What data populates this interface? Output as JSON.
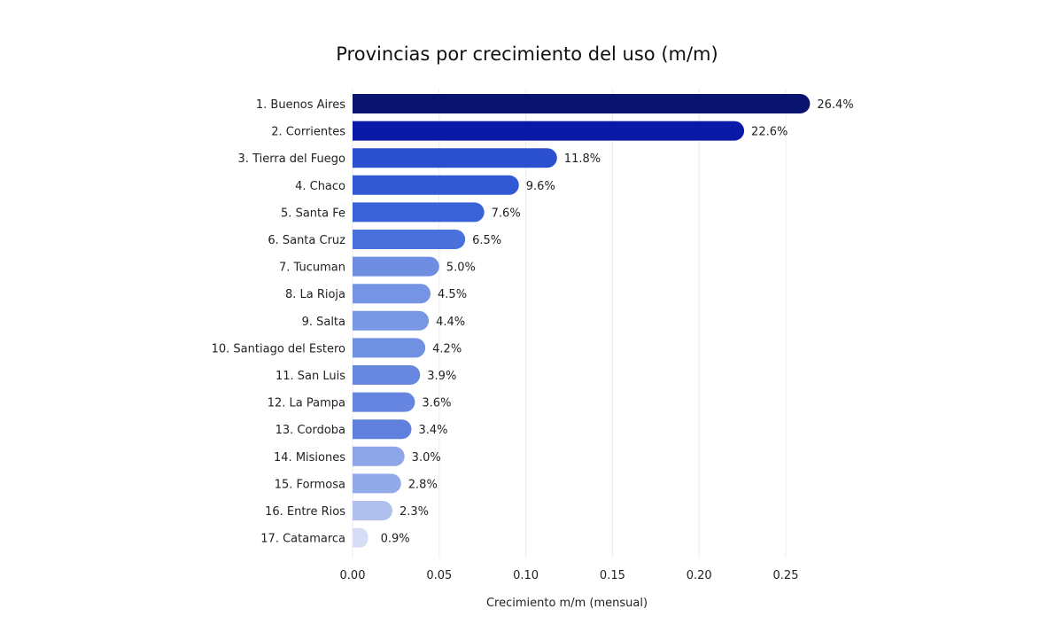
{
  "chart_data": {
    "type": "bar",
    "orientation": "horizontal",
    "title": "Provincias por crecimiento del uso (m/m)",
    "xlabel": "Crecimiento m/m (mensual)",
    "ylabel": "",
    "xlim": [
      0,
      0.26
    ],
    "xticks": [
      "0.00",
      "0.05",
      "0.10",
      "0.15",
      "0.20",
      "0.25"
    ],
    "grid": true,
    "categories": [
      "1. Buenos Aires",
      "2. Corrientes",
      "3. Tierra del Fuego",
      "4. Chaco",
      "5. Santa Fe",
      "6. Santa Cruz",
      "7. Tucuman",
      "8. La Rioja",
      "9. Salta",
      "10. Santiago del Estero",
      "11. San Luis",
      "12. La Pampa",
      "13. Cordoba",
      "14. Misiones",
      "15. Formosa",
      "16. Entre Rios",
      "17. Catamarca"
    ],
    "values": [
      0.264,
      0.226,
      0.118,
      0.096,
      0.076,
      0.065,
      0.05,
      0.045,
      0.044,
      0.042,
      0.039,
      0.036,
      0.034,
      0.03,
      0.028,
      0.023,
      0.009
    ],
    "labels": [
      "26.4%",
      "22.6%",
      "11.8%",
      "9.6%",
      "7.6%",
      "6.5%",
      "5.0%",
      "4.5%",
      "4.4%",
      "4.2%",
      "3.9%",
      "3.6%",
      "3.4%",
      "3.0%",
      "2.8%",
      "2.3%",
      "0.9%"
    ],
    "colors": [
      "#0a1470",
      "#0b1aa6",
      "#2a50d0",
      "#3358d4",
      "#3a62d8",
      "#4a70dc",
      "#6f8ee2",
      "#7594e4",
      "#7897e4",
      "#7090e2",
      "#6888e0",
      "#6585e0",
      "#6080de",
      "#8ea6e8",
      "#92aae9",
      "#b0c0ee",
      "#d5ddf6"
    ]
  }
}
